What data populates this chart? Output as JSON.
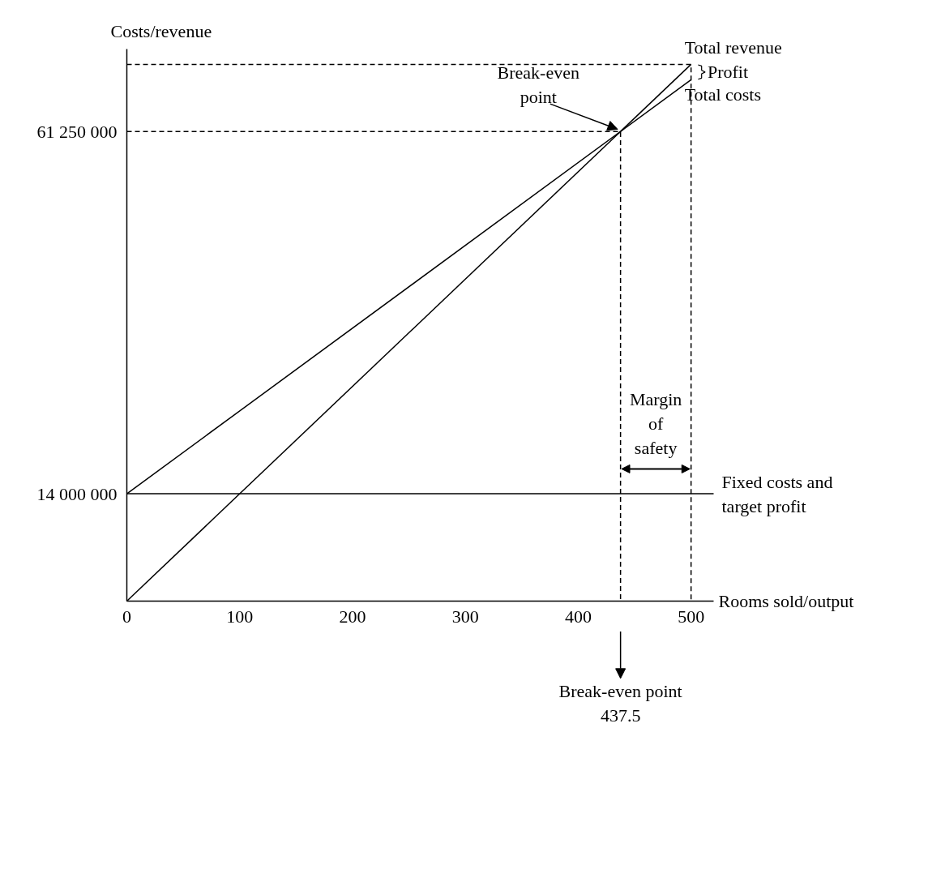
{
  "chart_data": {
    "type": "line",
    "xlabel": "Rooms sold/output",
    "ylabel": "Costs/revenue",
    "xlim": [
      0,
      520
    ],
    "ylim": [
      0,
      72000000
    ],
    "xticks": [
      0,
      100,
      200,
      300,
      400,
      500
    ],
    "yticks": [
      {
        "value": 14000000,
        "label": "14 000 000"
      },
      {
        "value": 61250000,
        "label": "61 250 000"
      }
    ],
    "grid": false,
    "series": [
      {
        "name": "Total revenue",
        "color": "#000000",
        "x": [
          0,
          500
        ],
        "values": [
          0,
          70000000
        ],
        "line_style": "solid"
      },
      {
        "name": "Total costs",
        "color": "#000000",
        "x": [
          0,
          500
        ],
        "values": [
          14000000,
          68000000
        ],
        "line_style": "solid"
      },
      {
        "name": "Fixed costs and target profit",
        "color": "#000000",
        "x": [
          0,
          520
        ],
        "values": [
          14000000,
          14000000
        ],
        "line_style": "solid"
      },
      {
        "color": "#000000",
        "x": [
          0,
          437.5,
          437.5
        ],
        "values": [
          61250000,
          61250000,
          0
        ],
        "line_style": "dashed"
      },
      {
        "color": "#000000",
        "x": [
          0,
          500,
          500
        ],
        "values": [
          70000000,
          70000000,
          0
        ],
        "line_style": "dashed"
      }
    ],
    "annotations": [
      {
        "text": "Break-even point",
        "x": 437.5,
        "y": 61250000
      },
      {
        "text": "Profit",
        "x": 500,
        "y": 69000000
      },
      {
        "text": "Margin of safety",
        "x": 468.75,
        "y": 14000000
      },
      "Break-even point 437.5"
    ]
  }
}
